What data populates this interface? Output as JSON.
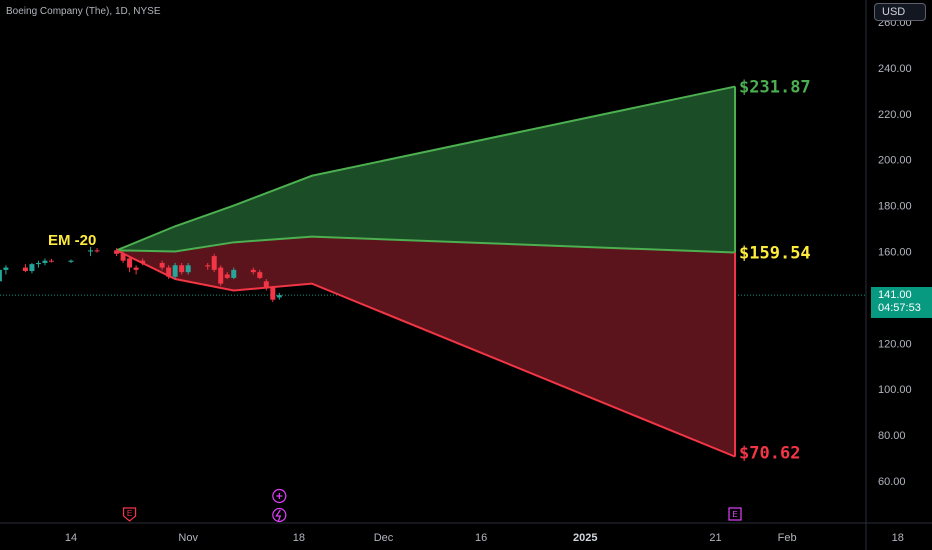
{
  "header": {
    "title": "Boeing Company (The), 1D, NYSE"
  },
  "currency_button": {
    "label": "USD"
  },
  "price_tag": {
    "price": "141.00",
    "countdown": "04:57:53"
  },
  "event_icons": {
    "earnings_label": "E"
  },
  "colors": {
    "background": "#000000",
    "up": "#26a69a",
    "down": "#f23645",
    "upper_band_line": "#4caf50",
    "upper_band_fill": "#1b4d26",
    "lower_band_line": "#f23645",
    "lower_band_fill": "#5c141c",
    "mid_line_label": "#ffeb3b",
    "upper_label": "#4caf50",
    "lower_label": "#f23645",
    "current_price_line": "#089981",
    "event_badge": "#e040fb"
  },
  "chart_data": {
    "type": "line",
    "title": "Boeing Company (The), 1D, NYSE",
    "ylim": [
      50,
      270
    ],
    "y_ticks": [
      "60.00",
      "80.00",
      "100.00",
      "120.00",
      "140.00",
      "160.00",
      "180.00",
      "200.00",
      "220.00",
      "240.00"
    ],
    "x_ticks": [
      "14",
      "Nov",
      "18",
      "Dec",
      "16",
      "2025",
      "21",
      "Feb",
      "18"
    ],
    "x_tick_bold": [
      "2025"
    ],
    "current_price": 141.0,
    "annotation": "EM -20",
    "projection": {
      "x": [
        "2024-10-21",
        "2024-10-30",
        "2024-11-08",
        "2024-11-20",
        "2025-01-24"
      ],
      "upper": [
        160.5,
        171,
        180,
        193,
        231.87
      ],
      "mid": [
        160.5,
        160,
        164,
        166.5,
        159.54
      ],
      "lower": [
        160.5,
        148,
        143,
        146,
        70.62
      ],
      "labels": {
        "upper": "$231.87",
        "mid": "$159.54",
        "lower": "$70.62"
      }
    },
    "candles": [
      {
        "date": "2024-09-23",
        "open": 153.5,
        "high": 155,
        "low": 152,
        "close": 153.8
      },
      {
        "date": "2024-09-24",
        "open": 153.8,
        "high": 156,
        "low": 152.5,
        "close": 154.5
      },
      {
        "date": "2024-09-25",
        "open": 154.5,
        "high": 157,
        "low": 153,
        "close": 155.5
      },
      {
        "date": "2024-09-26",
        "open": 155.5,
        "high": 157.5,
        "low": 154,
        "close": 155
      },
      {
        "date": "2024-09-27",
        "open": 155,
        "high": 156,
        "low": 152,
        "close": 153
      },
      {
        "date": "2024-09-30",
        "open": 153,
        "high": 154,
        "low": 147,
        "close": 148
      },
      {
        "date": "2024-10-01",
        "open": 148,
        "high": 152,
        "low": 146,
        "close": 151
      },
      {
        "date": "2024-10-02",
        "open": 151,
        "high": 152,
        "low": 146,
        "close": 147
      },
      {
        "date": "2024-10-03",
        "open": 147,
        "high": 153,
        "low": 146,
        "close": 152
      },
      {
        "date": "2024-10-04",
        "open": 152,
        "high": 154,
        "low": 150,
        "close": 153
      },
      {
        "date": "2024-10-07",
        "open": 153,
        "high": 154.5,
        "low": 151,
        "close": 151.5
      },
      {
        "date": "2024-10-08",
        "open": 151.5,
        "high": 155,
        "low": 150.5,
        "close": 154.5
      },
      {
        "date": "2024-10-09",
        "open": 154.5,
        "high": 156,
        "low": 153,
        "close": 155
      },
      {
        "date": "2024-10-10",
        "open": 155,
        "high": 157,
        "low": 154,
        "close": 156
      },
      {
        "date": "2024-10-11",
        "open": 156,
        "high": 156.8,
        "low": 155.2,
        "close": 155.6
      },
      {
        "date": "2024-10-14",
        "open": 155.5,
        "high": 156.5,
        "low": 155,
        "close": 156
      },
      {
        "date": "2024-10-17",
        "open": 160,
        "high": 162,
        "low": 158,
        "close": 160.5
      },
      {
        "date": "2024-10-18",
        "open": 160.5,
        "high": 161.5,
        "low": 159.5,
        "close": 160.2
      },
      {
        "date": "2024-10-21",
        "open": 160.5,
        "high": 161.5,
        "low": 158,
        "close": 159
      },
      {
        "date": "2024-10-22",
        "open": 159,
        "high": 160,
        "low": 155,
        "close": 156
      },
      {
        "date": "2024-10-23",
        "open": 157,
        "high": 157.5,
        "low": 151,
        "close": 153
      },
      {
        "date": "2024-10-24",
        "open": 153,
        "high": 154,
        "low": 150,
        "close": 152
      },
      {
        "date": "2024-10-25",
        "open": 156,
        "high": 157,
        "low": 154,
        "close": 155
      },
      {
        "date": "2024-10-28",
        "open": 155,
        "high": 156,
        "low": 152,
        "close": 153
      },
      {
        "date": "2024-10-29",
        "open": 153,
        "high": 154,
        "low": 148,
        "close": 149
      },
      {
        "date": "2024-10-30",
        "open": 149,
        "high": 155,
        "low": 148,
        "close": 154
      },
      {
        "date": "2024-10-31",
        "open": 154,
        "high": 155,
        "low": 150,
        "close": 151
      },
      {
        "date": "2024-11-01",
        "open": 151,
        "high": 155,
        "low": 150,
        "close": 154
      },
      {
        "date": "2024-11-04",
        "open": 154,
        "high": 155,
        "low": 152,
        "close": 153.5
      },
      {
        "date": "2024-11-05",
        "open": 158,
        "high": 159,
        "low": 151,
        "close": 152
      },
      {
        "date": "2024-11-06",
        "open": 153,
        "high": 154,
        "low": 145,
        "close": 146
      },
      {
        "date": "2024-11-07",
        "open": 150,
        "high": 151,
        "low": 148,
        "close": 148.5
      },
      {
        "date": "2024-11-08",
        "open": 148.5,
        "high": 153,
        "low": 148,
        "close": 152
      },
      {
        "date": "2024-11-11",
        "open": 152,
        "high": 153,
        "low": 150,
        "close": 151
      },
      {
        "date": "2024-11-12",
        "open": 151,
        "high": 152,
        "low": 148,
        "close": 148.5
      },
      {
        "date": "2024-11-13",
        "open": 147,
        "high": 148,
        "low": 143,
        "close": 144
      },
      {
        "date": "2024-11-14",
        "open": 144.5,
        "high": 145,
        "low": 138,
        "close": 139
      },
      {
        "date": "2024-11-15",
        "open": 140,
        "high": 142,
        "low": 139,
        "close": 141
      }
    ],
    "events": [
      {
        "date": "2024-10-23",
        "type": "earnings",
        "label": "E"
      },
      {
        "date": "2024-11-15",
        "type": "dividend"
      },
      {
        "date": "2024-11-15",
        "type": "split"
      },
      {
        "date": "2025-01-24",
        "type": "earnings",
        "label": "E"
      }
    ]
  }
}
